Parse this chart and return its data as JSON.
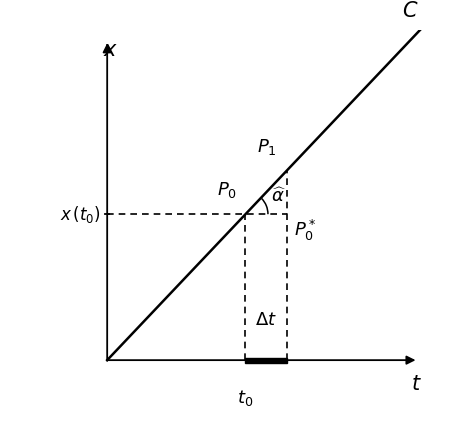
{
  "background_color": "#ffffff",
  "fig_width": 4.61,
  "fig_height": 4.29,
  "dpi": 100,
  "xlim": [
    0.0,
    1.0
  ],
  "ylim": [
    0.0,
    1.0
  ],
  "t0": 0.52,
  "dt": 0.15,
  "slope": 1.05,
  "intercept": 0.0,
  "line_color": "#000000",
  "dashed_color": "#000000",
  "font_size": 13
}
